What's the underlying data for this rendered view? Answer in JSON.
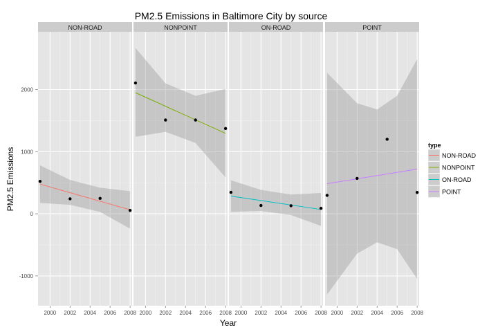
{
  "chart_data": {
    "type": "scatter",
    "title": "PM2.5 Emissions in Baltimore City by source",
    "xlabel": "Year",
    "ylabel": "PM2.5 Emissions",
    "xlim": [
      1998.8,
      2008.2
    ],
    "ylim": [
      -1480,
      2930
    ],
    "x_ticks": [
      2000,
      2002,
      2004,
      2006,
      2008
    ],
    "x_tick_labels": [
      "2000",
      "2002",
      "2004",
      "2006",
      "2008"
    ],
    "y_ticks": [
      -1000,
      0,
      1000,
      2000
    ],
    "y_tick_labels": [
      "-1000",
      "0",
      "1000",
      "2000"
    ],
    "grid": true,
    "legend": {
      "title": "type",
      "position": "right"
    },
    "panels": [
      {
        "name": "NON-ROAD",
        "color": "#F8766D",
        "points": [
          {
            "x": 1999,
            "y": 522
          },
          {
            "x": 2002,
            "y": 241
          },
          {
            "x": 2005,
            "y": 248
          },
          {
            "x": 2008,
            "y": 55
          }
        ],
        "fit": [
          {
            "x": 1999,
            "y": 478
          },
          {
            "x": 2008,
            "y": 64
          }
        ],
        "band_upper": [
          {
            "x": 1999,
            "y": 780
          },
          {
            "x": 2002,
            "y": 545
          },
          {
            "x": 2005,
            "y": 420
          },
          {
            "x": 2008,
            "y": 365
          }
        ],
        "band_lower": [
          {
            "x": 1999,
            "y": 175
          },
          {
            "x": 2002,
            "y": 145
          },
          {
            "x": 2005,
            "y": 30
          },
          {
            "x": 2008,
            "y": -240
          }
        ]
      },
      {
        "name": "NONPOINT",
        "color": "#7CAE00",
        "points": [
          {
            "x": 1999,
            "y": 2107
          },
          {
            "x": 2002,
            "y": 1510
          },
          {
            "x": 2005,
            "y": 1510
          },
          {
            "x": 2008,
            "y": 1373
          }
        ],
        "fit": [
          {
            "x": 1999,
            "y": 1950
          },
          {
            "x": 2008,
            "y": 1295
          }
        ],
        "band_upper": [
          {
            "x": 1999,
            "y": 2670
          },
          {
            "x": 2002,
            "y": 2100
          },
          {
            "x": 2005,
            "y": 1900
          },
          {
            "x": 2008,
            "y": 2010
          }
        ],
        "band_lower": [
          {
            "x": 1999,
            "y": 1240
          },
          {
            "x": 2002,
            "y": 1320
          },
          {
            "x": 2005,
            "y": 1140
          },
          {
            "x": 2008,
            "y": 585
          }
        ]
      },
      {
        "name": "ON-ROAD",
        "color": "#00BFC4",
        "points": [
          {
            "x": 1999,
            "y": 346
          },
          {
            "x": 2002,
            "y": 134
          },
          {
            "x": 2005,
            "y": 130
          },
          {
            "x": 2008,
            "y": 88
          }
        ],
        "fit": [
          {
            "x": 1999,
            "y": 285
          },
          {
            "x": 2008,
            "y": 70
          }
        ],
        "band_upper": [
          {
            "x": 1999,
            "y": 540
          },
          {
            "x": 2002,
            "y": 385
          },
          {
            "x": 2005,
            "y": 310
          },
          {
            "x": 2008,
            "y": 335
          }
        ],
        "band_lower": [
          {
            "x": 1999,
            "y": 30
          },
          {
            "x": 2002,
            "y": 45
          },
          {
            "x": 2005,
            "y": -20
          },
          {
            "x": 2008,
            "y": -195
          }
        ]
      },
      {
        "name": "POINT",
        "color": "#C77CFF",
        "points": [
          {
            "x": 1999,
            "y": 297
          },
          {
            "x": 2002,
            "y": 570
          },
          {
            "x": 2005,
            "y": 1200
          },
          {
            "x": 2008,
            "y": 344
          }
        ],
        "fit": [
          {
            "x": 1999,
            "y": 485
          },
          {
            "x": 2008,
            "y": 720
          }
        ],
        "band_upper": [
          {
            "x": 1999,
            "y": 2270
          },
          {
            "x": 2002,
            "y": 1780
          },
          {
            "x": 2004,
            "y": 1680
          },
          {
            "x": 2006,
            "y": 1900
          },
          {
            "x": 2008,
            "y": 2490
          }
        ],
        "band_lower": [
          {
            "x": 1999,
            "y": -1300
          },
          {
            "x": 2002,
            "y": -640
          },
          {
            "x": 2004,
            "y": -460
          },
          {
            "x": 2006,
            "y": -570
          },
          {
            "x": 2008,
            "y": -1050
          }
        ]
      }
    ]
  }
}
